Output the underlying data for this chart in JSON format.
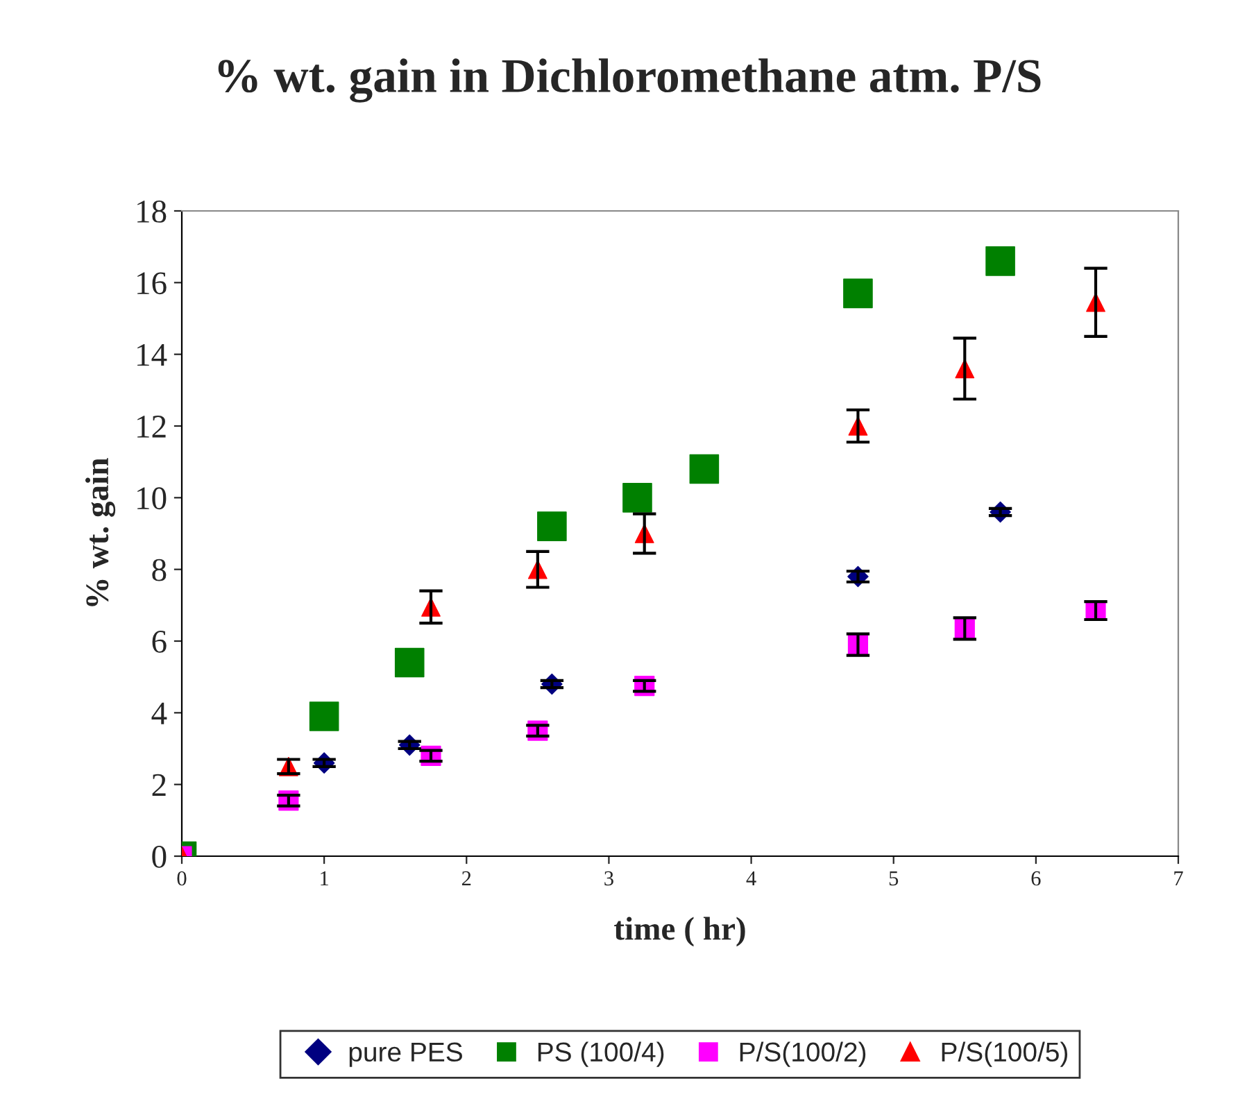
{
  "chart_data": {
    "type": "scatter",
    "title": "% wt. gain in Dichloromethane atm. P/S",
    "xlabel": "time ( hr)",
    "ylabel": "% wt. gain",
    "xlim": [
      0,
      7
    ],
    "xticks": [
      0,
      1,
      2,
      3,
      4,
      5,
      6,
      7
    ],
    "ylim": [
      0,
      18
    ],
    "yticks": [
      0,
      2,
      4,
      6,
      8,
      10,
      12,
      14,
      16,
      18
    ],
    "grid": false,
    "legend": "bottom",
    "series": [
      {
        "name": "pure PES",
        "color": "#000080",
        "marker": "diamond",
        "x": [
          1,
          1.6,
          2.6,
          4.75,
          5.75
        ],
        "values": [
          2.6,
          3.1,
          4.8,
          7.8,
          9.6
        ],
        "errors": [
          0.1,
          0.1,
          0.1,
          0.15,
          0.1
        ]
      },
      {
        "name": "PS (100/4)",
        "color": "#008000",
        "marker": "square",
        "x": [
          0,
          1,
          1.6,
          2.6,
          3.2,
          3.67,
          4.75,
          5.75
        ],
        "values": [
          0,
          3.9,
          5.4,
          9.2,
          10.0,
          10.8,
          15.7,
          16.6
        ]
      },
      {
        "name": "P/S(100/2)",
        "color": "#ff00ff",
        "marker": "square",
        "x": [
          0,
          0.75,
          1.75,
          2.5,
          3.25,
          4.75,
          5.5,
          6.42
        ],
        "values": [
          0,
          1.55,
          2.8,
          3.5,
          4.75,
          5.9,
          6.35,
          6.85
        ],
        "errors": [
          null,
          0.15,
          0.15,
          0.15,
          0.15,
          0.3,
          0.3,
          0.25
        ]
      },
      {
        "name": "P/S(100/5)",
        "color": "#ff0000",
        "marker": "triangle",
        "x": [
          0,
          0.75,
          1.75,
          2.5,
          3.25,
          4.75,
          5.5,
          6.42
        ],
        "values": [
          0,
          2.5,
          6.95,
          8.0,
          9.0,
          12.0,
          13.6,
          15.45
        ],
        "errors": [
          null,
          0.2,
          0.45,
          0.5,
          0.55,
          0.45,
          0.85,
          0.95
        ]
      }
    ]
  }
}
